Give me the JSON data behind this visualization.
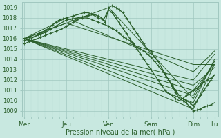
{
  "bg_color": "#c8e8e0",
  "line_color": "#2a5e2a",
  "grid_color_major": "#a0c8c0",
  "grid_color_minor": "#b8dcd5",
  "ylabel_values": [
    1009,
    1010,
    1011,
    1012,
    1013,
    1014,
    1015,
    1016,
    1017,
    1018,
    1019
  ],
  "xtick_labels": [
    "Mer",
    "Jeu",
    "Ven",
    "Sam",
    "Dim",
    "Lu"
  ],
  "xtick_positions": [
    0,
    48,
    96,
    144,
    192,
    216
  ],
  "xlabel": "Pression niveau de la mer( hPa )",
  "ylim": [
    1008.5,
    1019.5
  ],
  "xlim": [
    -2,
    220
  ],
  "series": [
    {
      "x": [
        0,
        4,
        8,
        12,
        16,
        20,
        24,
        28,
        32,
        36,
        40,
        44,
        48,
        52,
        56,
        60,
        64,
        68,
        72,
        76,
        80,
        84,
        88,
        92,
        96,
        100,
        104,
        108,
        112,
        116,
        120,
        124,
        128,
        132,
        136,
        140,
        144,
        148,
        152,
        156,
        160,
        164,
        168,
        172,
        176,
        180,
        184,
        188,
        192,
        196,
        200,
        204,
        208,
        212,
        216
      ],
      "y": [
        1015.8,
        1015.9,
        1016.0,
        1016.2,
        1016.4,
        1016.6,
        1016.8,
        1017.0,
        1017.3,
        1017.6,
        1017.8,
        1017.9,
        1018.0,
        1018.1,
        1018.2,
        1018.3,
        1018.4,
        1018.5,
        1018.5,
        1018.4,
        1018.3,
        1018.2,
        1018.0,
        1017.5,
        1019.0,
        1019.2,
        1019.0,
        1018.8,
        1018.5,
        1018.0,
        1017.5,
        1017.0,
        1016.5,
        1016.0,
        1015.5,
        1015.0,
        1014.8,
        1014.2,
        1013.8,
        1013.2,
        1012.6,
        1012.0,
        1011.4,
        1010.8,
        1010.2,
        1010.0,
        1009.8,
        1009.4,
        1009.0,
        1009.1,
        1009.2,
        1009.4,
        1009.5,
        1009.6,
        1009.8
      ],
      "style": "dense_marker"
    },
    {
      "x": [
        0,
        6,
        12,
        18,
        24,
        30,
        36,
        42,
        48,
        54,
        60,
        66,
        72,
        78,
        84,
        90,
        96,
        100,
        104,
        108,
        112,
        116,
        120,
        124,
        128,
        132,
        136,
        140,
        144,
        148,
        152,
        156,
        160,
        164,
        168,
        172,
        176,
        180,
        184,
        188,
        192,
        196,
        200,
        204,
        208,
        212,
        216
      ],
      "y": [
        1016.0,
        1016.1,
        1016.2,
        1016.4,
        1016.6,
        1016.9,
        1017.2,
        1017.5,
        1017.8,
        1017.9,
        1018.0,
        1018.1,
        1018.2,
        1018.3,
        1018.0,
        1017.8,
        1018.8,
        1018.5,
        1018.0,
        1017.5,
        1017.0,
        1016.5,
        1016.0,
        1015.5,
        1015.0,
        1014.5,
        1014.0,
        1013.5,
        1013.0,
        1012.5,
        1012.0,
        1011.5,
        1011.0,
        1010.7,
        1010.5,
        1010.2,
        1010.0,
        1010.2,
        1010.5,
        1010.8,
        1011.0,
        1011.2,
        1011.5,
        1011.8,
        1012.0,
        1012.2,
        1012.5
      ],
      "style": "dense_marker"
    },
    {
      "x": [
        0,
        6,
        12,
        18,
        24,
        30,
        36,
        42,
        48,
        52,
        56,
        60,
        66,
        72,
        78,
        84,
        90,
        96,
        100,
        104,
        108,
        112,
        116,
        120,
        124,
        128,
        132,
        136,
        140,
        144,
        148,
        152,
        156,
        160,
        164,
        168,
        172,
        176,
        180,
        184,
        188,
        192,
        196,
        200,
        204,
        208,
        212,
        216
      ],
      "y": [
        1015.5,
        1015.7,
        1015.9,
        1016.1,
        1016.3,
        1016.5,
        1016.7,
        1016.9,
        1017.2,
        1017.4,
        1017.6,
        1017.8,
        1018.0,
        1018.0,
        1017.8,
        1017.6,
        1017.4,
        1017.2,
        1017.0,
        1016.8,
        1016.5,
        1016.2,
        1016.0,
        1015.8,
        1015.5,
        1015.2,
        1015.0,
        1014.8,
        1014.5,
        1014.2,
        1013.8,
        1013.4,
        1013.0,
        1012.5,
        1012.0,
        1011.5,
        1011.0,
        1010.5,
        1010.2,
        1010.0,
        1009.8,
        1009.5,
        1010.0,
        1010.5,
        1011.0,
        1011.5,
        1012.0,
        1012.5
      ],
      "style": "dense_marker"
    },
    {
      "x": [
        0,
        192,
        216
      ],
      "y": [
        1016.0,
        1009.2,
        1013.5
      ],
      "style": "straight"
    },
    {
      "x": [
        0,
        192,
        216
      ],
      "y": [
        1016.0,
        1009.8,
        1014.0
      ],
      "style": "straight"
    },
    {
      "x": [
        0,
        192,
        216
      ],
      "y": [
        1016.0,
        1010.5,
        1013.8
      ],
      "style": "straight"
    },
    {
      "x": [
        0,
        192,
        216
      ],
      "y": [
        1016.0,
        1011.0,
        1013.5
      ],
      "style": "straight"
    },
    {
      "x": [
        0,
        192,
        216
      ],
      "y": [
        1016.0,
        1011.5,
        1013.2
      ],
      "style": "straight"
    },
    {
      "x": [
        0,
        192,
        216
      ],
      "y": [
        1016.0,
        1012.0,
        1014.5
      ],
      "style": "straight"
    },
    {
      "x": [
        0,
        48,
        192,
        216
      ],
      "y": [
        1016.0,
        1018.0,
        1012.8,
        1014.8
      ],
      "style": "straight"
    },
    {
      "x": [
        0,
        48,
        192,
        216
      ],
      "y": [
        1016.0,
        1017.5,
        1013.5,
        1013.5
      ],
      "style": "straight"
    },
    {
      "x": [
        0,
        96,
        192,
        216
      ],
      "y": [
        1016.0,
        1019.0,
        1010.2,
        1013.8
      ],
      "style": "straight"
    }
  ]
}
